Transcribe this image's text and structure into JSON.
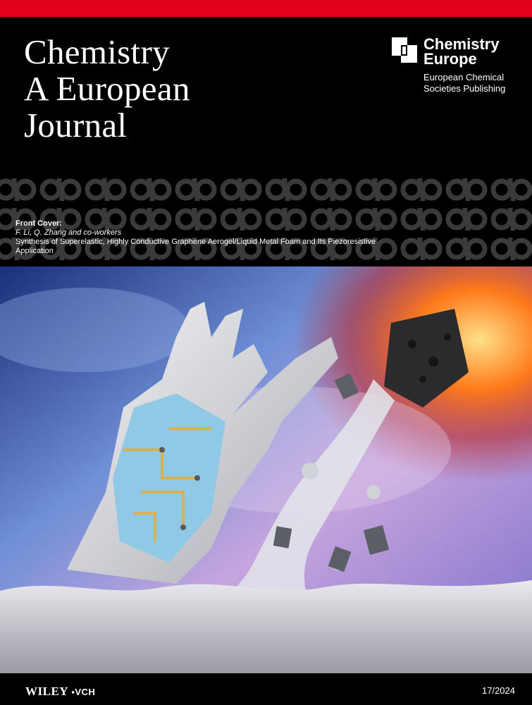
{
  "journal": {
    "title_lines": [
      "Chemistry",
      "A European",
      "Journal"
    ]
  },
  "brand": {
    "name_lines": [
      "Chemistry",
      "Europe"
    ],
    "subtitle_lines": [
      "European Chemical",
      "Societies Publishing"
    ]
  },
  "cover_info": {
    "label": "Front Cover:",
    "authors": "F. Li, Q. Zhang and co-workers",
    "article_title": "Synthesis of Superelastic, Highly Conductive Graphene Aerogel/Liquid Metal Foam and Its Piezoresistive Application"
  },
  "footer": {
    "publisher_main": "WILEY",
    "publisher_sub": "VCH",
    "issue": "17/2024"
  },
  "colors": {
    "accent_red": "#e2001a",
    "background": "#000000"
  }
}
